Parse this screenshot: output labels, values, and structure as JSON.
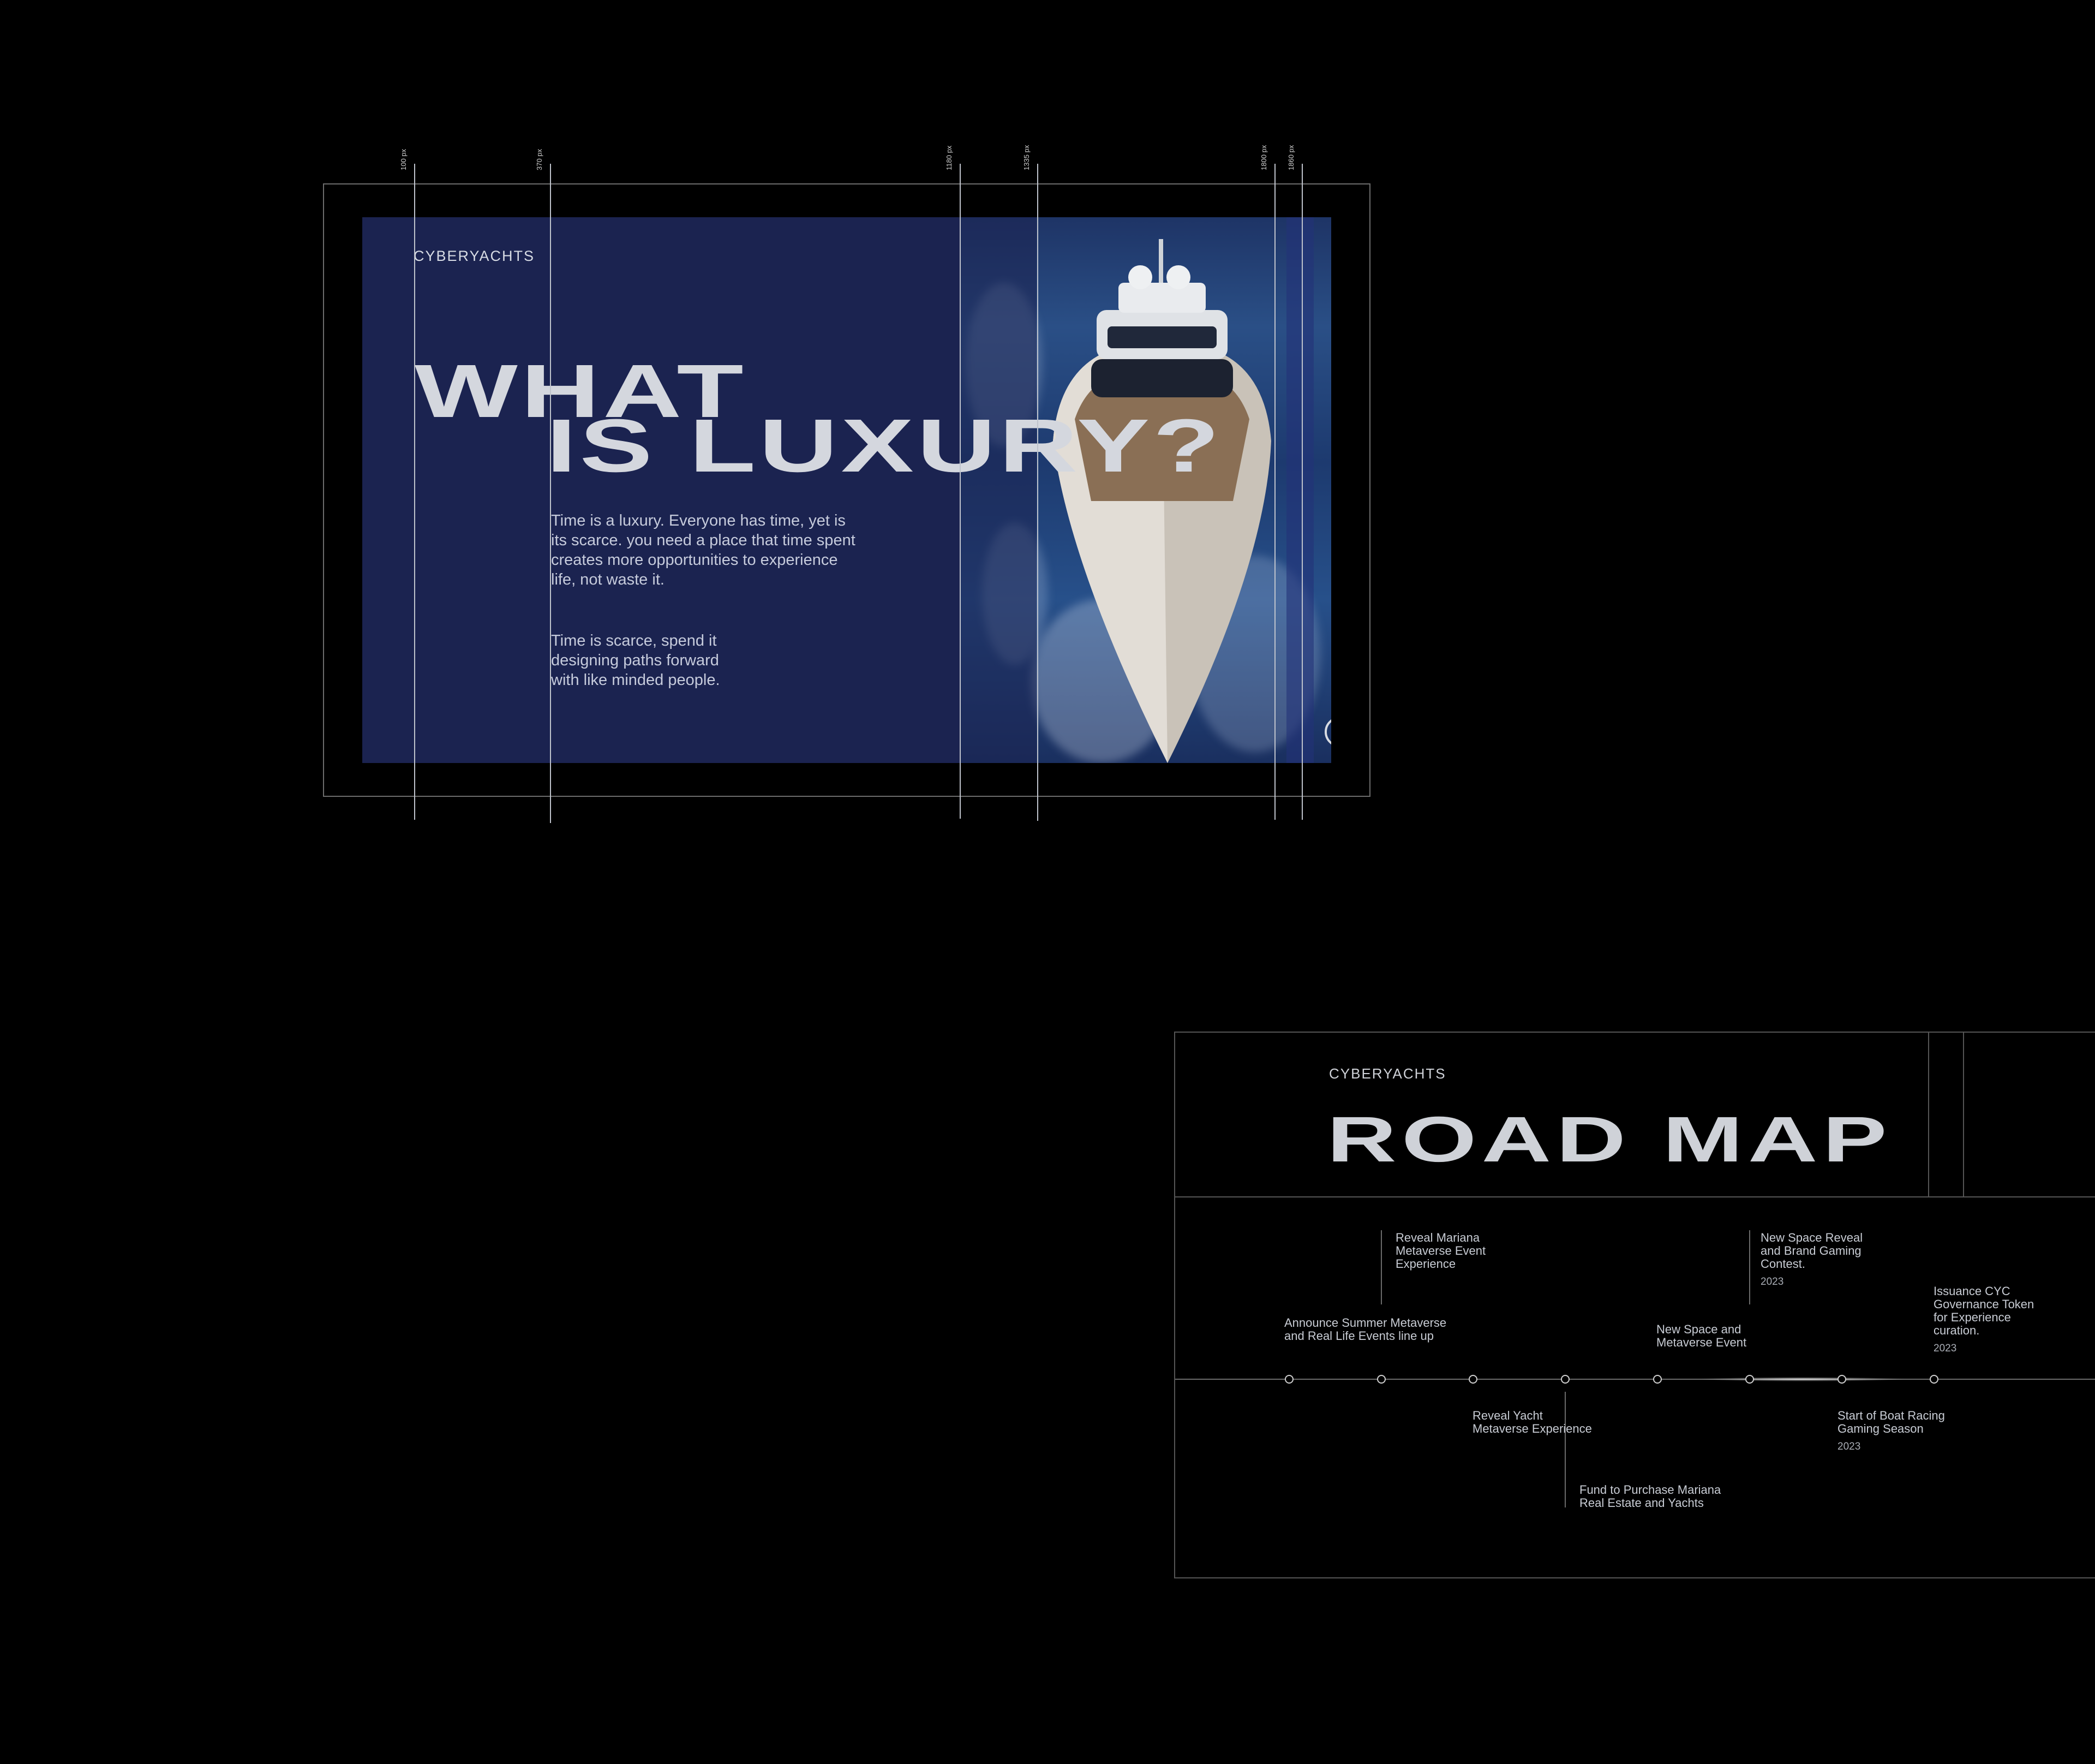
{
  "slide1": {
    "logo": "CYBERYACHTS",
    "headline_line1": "WHAT",
    "headline_line2": "IS LUXURY?",
    "paragraph1": "Time is a luxury. Everyone has time, yet is its scarce. you need a place that time spent creates more opportunities to experience life, not waste it.",
    "paragraph2": "Time is scarce, spend it designing paths forward with like minded people.",
    "guides": [
      "100 px",
      "370 px",
      "1180 px",
      "1335 px",
      "1800 px",
      "1860 px"
    ]
  },
  "slide2": {
    "logo": "CYBERYACHTS",
    "title": "ROAD MAP",
    "events": [
      {
        "text": "Announce Summer Metaverse\nand Real Life Events line up",
        "year": ""
      },
      {
        "text": "Reveal Mariana\nMetaverse Event\nExperience",
        "year": ""
      },
      {
        "text": "Reveal Yacht\nMetaverse Experience",
        "year": ""
      },
      {
        "text": "Fund to Purchase Mariana\nReal Estate and Yachts",
        "year": ""
      },
      {
        "text": "New Space and\nMetaverse Event",
        "year": ""
      },
      {
        "text": "New Space Reveal\nand Brand Gaming\nContest.",
        "year": "2023"
      },
      {
        "text": "Start of Boat Racing\nGaming Season",
        "year": "2023"
      },
      {
        "text": "Issuance CYC\nGovernance Token\nfor Experience\ncuration.",
        "year": "2023"
      }
    ]
  },
  "colors": {
    "background": "#000000",
    "slide_blue": "#1b2350",
    "text_light": "#cfd3dc"
  }
}
